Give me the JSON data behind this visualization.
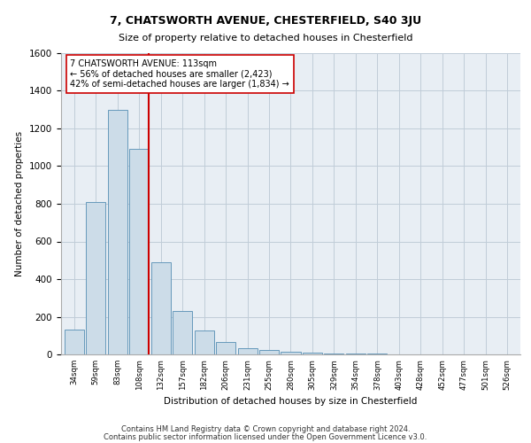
{
  "title1": "7, CHATSWORTH AVENUE, CHESTERFIELD, S40 3JU",
  "title2": "Size of property relative to detached houses in Chesterfield",
  "xlabel": "Distribution of detached houses by size in Chesterfield",
  "ylabel": "Number of detached properties",
  "categories": [
    "34sqm",
    "59sqm",
    "83sqm",
    "108sqm",
    "132sqm",
    "157sqm",
    "182sqm",
    "206sqm",
    "231sqm",
    "255sqm",
    "280sqm",
    "305sqm",
    "329sqm",
    "354sqm",
    "378sqm",
    "403sqm",
    "428sqm",
    "452sqm",
    "477sqm",
    "501sqm",
    "526sqm"
  ],
  "values": [
    130,
    810,
    1300,
    1090,
    490,
    230,
    125,
    65,
    35,
    22,
    15,
    10,
    5,
    5,
    5,
    2,
    2,
    2,
    2,
    2,
    2
  ],
  "bar_color": "#ccdce8",
  "bar_edge_color": "#6699bb",
  "property_line_color": "#cc0000",
  "annotation_text": "7 CHATSWORTH AVENUE: 113sqm\n← 56% of detached houses are smaller (2,423)\n42% of semi-detached houses are larger (1,834) →",
  "annotation_box_color": "#ffffff",
  "annotation_box_edge": "#cc0000",
  "ylim": [
    0,
    1600
  ],
  "yticks": [
    0,
    200,
    400,
    600,
    800,
    1000,
    1200,
    1400,
    1600
  ],
  "footer1": "Contains HM Land Registry data © Crown copyright and database right 2024.",
  "footer2": "Contains public sector information licensed under the Open Government Licence v3.0.",
  "bg_color": "#e8eef4",
  "grid_color": "#c0ccd8"
}
